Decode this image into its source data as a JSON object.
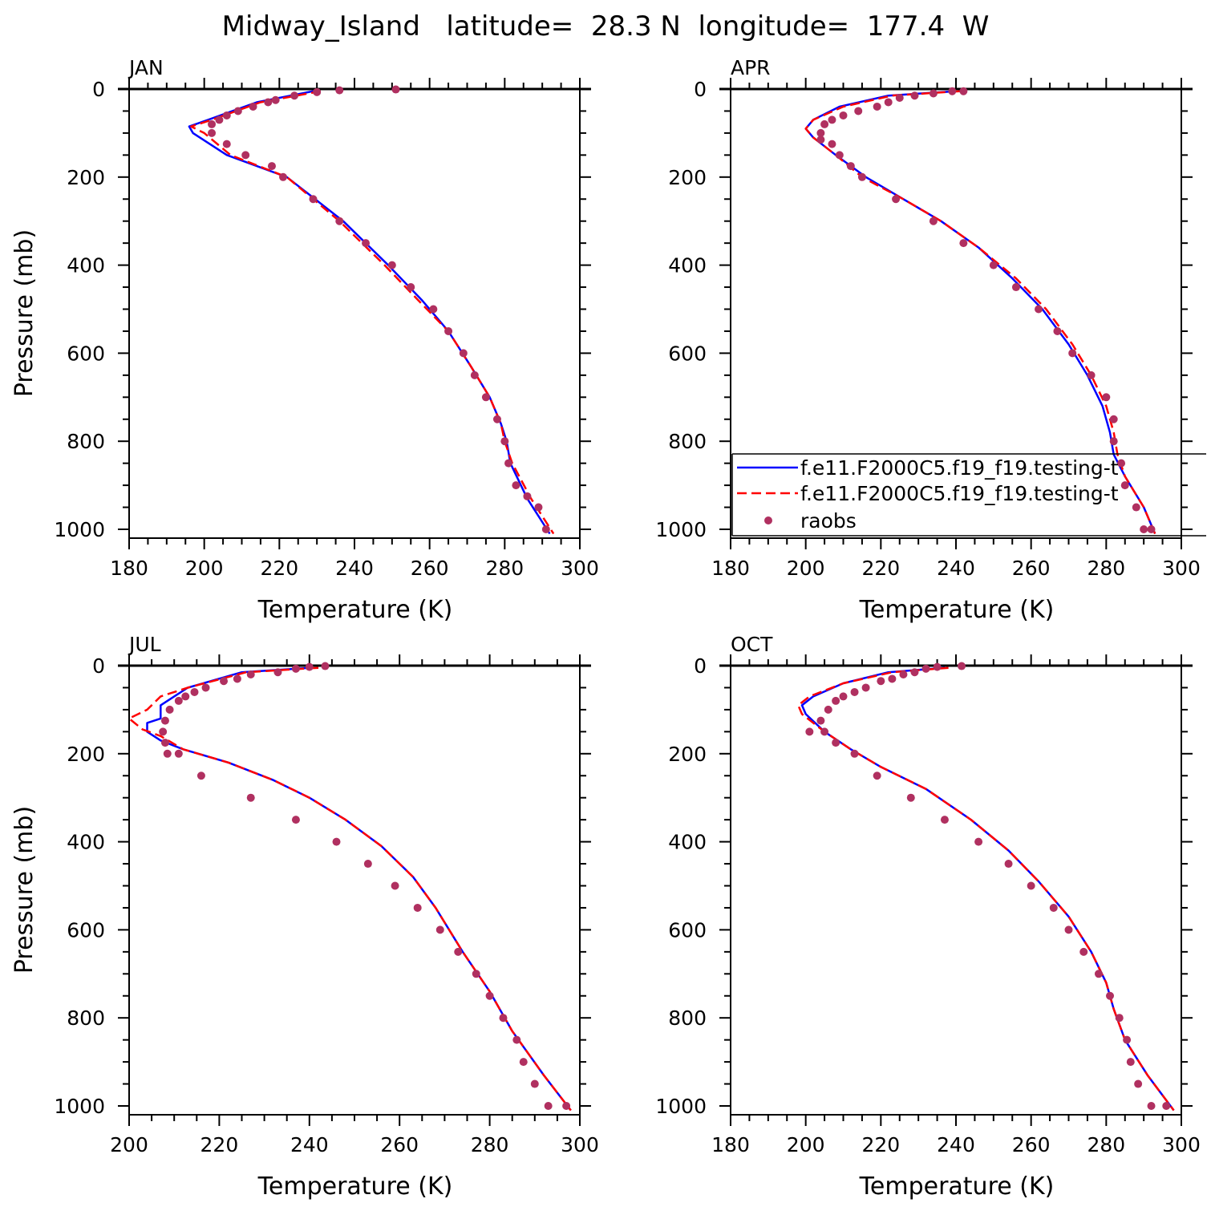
{
  "title": "Midway_Island   latitude=  28.3 N  longitude=  177.4  W",
  "colors": {
    "model1": "#0000ff",
    "model2": "#ff0000",
    "obs": "#b03060",
    "axes": "#000000"
  },
  "legend": {
    "panel_index": 1,
    "entries": [
      {
        "label": "f.e11.F2000C5.f19_f19.testing-t",
        "style": "solid",
        "color": "#0000ff"
      },
      {
        "label": "f.e11.F2000C5.f19_f19.testing-t",
        "style": "dashed",
        "color": "#ff0000"
      },
      {
        "label": "raobs",
        "style": "marker",
        "color": "#b03060"
      }
    ]
  },
  "chart_data": [
    {
      "type": "line",
      "panel_label": "JAN",
      "xlabel": "Temperature (K)",
      "ylabel": "Pressure (mb)",
      "xlim": [
        180,
        300
      ],
      "ylim": [
        1000,
        0
      ],
      "xticks": [
        180,
        200,
        220,
        240,
        260,
        280,
        300
      ],
      "yticks": [
        0,
        200,
        400,
        600,
        800,
        1000
      ],
      "series": [
        {
          "role": "model1",
          "x": [
            229,
            214,
            201,
            196,
            197,
            206,
            222,
            237,
            249,
            258,
            265,
            271,
            276,
            279,
            280.5,
            281.5,
            286,
            292
          ],
          "y": [
            5,
            30,
            70,
            85,
            100,
            150,
            200,
            300,
            400,
            480,
            550,
            630,
            700,
            760,
            800,
            850,
            930,
            1010
          ]
        },
        {
          "role": "model2",
          "x": [
            231,
            215,
            202,
            196.5,
            200,
            207,
            222,
            236,
            248,
            257,
            265,
            271,
            276,
            279,
            280,
            282,
            287,
            293
          ],
          "y": [
            5,
            30,
            70,
            85,
            100,
            150,
            200,
            300,
            400,
            480,
            550,
            630,
            700,
            760,
            800,
            850,
            930,
            1010
          ]
        },
        {
          "role": "obs",
          "x": [
            251,
            236,
            230,
            224,
            219,
            217,
            213,
            209,
            206,
            204,
            202,
            202,
            206,
            211,
            218,
            221,
            229,
            236,
            243,
            250,
            255,
            261,
            265,
            269,
            272,
            275,
            278,
            280,
            281,
            283,
            286,
            289,
            291
          ],
          "y": [
            1,
            3,
            7,
            15,
            25,
            30,
            40,
            50,
            60,
            70,
            80,
            100,
            125,
            150,
            175,
            200,
            250,
            300,
            350,
            400,
            450,
            500,
            550,
            600,
            650,
            700,
            750,
            800,
            850,
            900,
            925,
            950,
            1000
          ]
        }
      ]
    },
    {
      "type": "line",
      "panel_label": "APR",
      "xlabel": "Temperature (K)",
      "ylabel": "",
      "xlim": [
        180,
        300
      ],
      "ylim": [
        1000,
        0
      ],
      "xticks": [
        180,
        200,
        220,
        240,
        260,
        280,
        300
      ],
      "yticks": [
        0,
        200,
        400,
        600,
        800,
        1000
      ],
      "series": [
        {
          "role": "model1",
          "x": [
            240,
            222,
            209,
            202,
            200,
            202,
            208,
            216,
            226,
            236,
            246,
            255,
            263,
            270,
            275,
            279,
            281,
            282,
            285,
            290,
            293
          ],
          "y": [
            5,
            15,
            40,
            70,
            90,
            110,
            150,
            200,
            250,
            300,
            360,
            430,
            500,
            580,
            650,
            720,
            780,
            830,
            880,
            950,
            1010
          ]
        },
        {
          "role": "model2",
          "x": [
            241,
            223,
            210,
            202,
            200,
            202,
            208,
            215,
            226,
            236,
            246,
            256,
            264,
            271,
            276,
            280,
            282,
            283,
            285,
            290,
            293
          ],
          "y": [
            5,
            15,
            40,
            70,
            90,
            110,
            150,
            200,
            250,
            300,
            360,
            430,
            500,
            580,
            650,
            720,
            780,
            830,
            880,
            950,
            1010
          ]
        },
        {
          "role": "obs",
          "x": [
            242,
            239,
            234,
            229,
            225,
            222,
            219,
            214,
            210,
            207,
            205,
            204,
            204,
            207,
            209,
            212,
            215,
            224,
            234,
            242,
            250,
            256,
            262,
            267,
            271,
            276,
            280,
            282,
            282,
            284,
            285,
            288,
            290,
            292
          ],
          "y": [
            5,
            5,
            10,
            15,
            20,
            30,
            40,
            50,
            60,
            70,
            80,
            100,
            115,
            125,
            150,
            175,
            200,
            250,
            300,
            350,
            400,
            450,
            500,
            550,
            600,
            650,
            700,
            750,
            800,
            850,
            900,
            950,
            1000,
            1000
          ]
        }
      ]
    },
    {
      "type": "line",
      "panel_label": "JUL",
      "xlabel": "Temperature (K)",
      "ylabel": "Pressure (mb)",
      "xlim": [
        200,
        300
      ],
      "ylim": [
        1000,
        0
      ],
      "xticks": [
        200,
        220,
        240,
        260,
        280,
        300
      ],
      "yticks": [
        0,
        200,
        400,
        600,
        800,
        1000
      ],
      "series": [
        {
          "role": "model1",
          "x": [
            240,
            225,
            213,
            210,
            207,
            207,
            204,
            204,
            207,
            212,
            222,
            232,
            240,
            248,
            256,
            263,
            268,
            274,
            280,
            285,
            292,
            298
          ],
          "y": [
            5,
            15,
            50,
            70,
            90,
            120,
            130,
            150,
            170,
            190,
            220,
            260,
            300,
            350,
            410,
            480,
            550,
            650,
            740,
            830,
            930,
            1010
          ]
        },
        {
          "role": "model2",
          "x": [
            242,
            226,
            213,
            207,
            204,
            200,
            203,
            207,
            212,
            222,
            232,
            240,
            248,
            256,
            263,
            268,
            274,
            280,
            285,
            292,
            298
          ],
          "y": [
            5,
            15,
            50,
            70,
            100,
            120,
            145,
            160,
            190,
            220,
            260,
            300,
            350,
            410,
            480,
            550,
            650,
            740,
            830,
            930,
            1010
          ]
        },
        {
          "role": "obs",
          "x": [
            243.5,
            240,
            237,
            233,
            227,
            224,
            221,
            217,
            214.5,
            212.5,
            211,
            209,
            208,
            207.5,
            208,
            208.5,
            211,
            216,
            227,
            237,
            246,
            253,
            259,
            264,
            269,
            273,
            277,
            280,
            283,
            286,
            287.5,
            290,
            293,
            297
          ],
          "y": [
            1,
            3,
            7,
            15,
            20,
            30,
            35,
            50,
            60,
            70,
            80,
            100,
            125,
            150,
            175,
            200,
            200,
            250,
            300,
            350,
            400,
            450,
            500,
            550,
            600,
            650,
            700,
            750,
            800,
            850,
            900,
            950,
            1000,
            1000
          ]
        }
      ]
    },
    {
      "type": "line",
      "panel_label": "OCT",
      "xlabel": "Temperature (K)",
      "ylabel": "",
      "xlim": [
        180,
        300
      ],
      "ylim": [
        1000,
        0
      ],
      "xticks": [
        180,
        200,
        220,
        240,
        260,
        280,
        300
      ],
      "yticks": [
        0,
        200,
        400,
        600,
        800,
        1000
      ],
      "series": [
        {
          "role": "model1",
          "x": [
            237,
            222,
            210,
            202,
            199,
            200,
            205,
            212,
            220,
            232,
            244,
            254,
            262,
            270,
            276,
            280,
            282,
            285,
            291,
            298
          ],
          "y": [
            5,
            15,
            40,
            70,
            90,
            110,
            150,
            190,
            230,
            280,
            350,
            420,
            490,
            570,
            650,
            720,
            780,
            850,
            930,
            1010
          ]
        },
        {
          "role": "model2",
          "x": [
            238,
            223,
            210,
            201,
            198,
            199,
            205,
            212,
            220,
            232,
            244,
            254,
            262,
            270,
            276,
            280,
            282,
            285,
            291,
            298
          ],
          "y": [
            5,
            15,
            40,
            70,
            90,
            110,
            150,
            190,
            230,
            280,
            350,
            420,
            490,
            570,
            650,
            720,
            780,
            850,
            930,
            1010
          ]
        },
        {
          "role": "obs",
          "x": [
            241.5,
            235,
            232,
            229,
            226,
            223,
            220,
            216,
            213,
            210,
            208,
            206,
            204,
            201,
            205,
            208,
            213,
            219,
            228,
            237,
            246,
            254,
            260,
            266,
            270,
            274,
            278,
            281,
            283.5,
            285.5,
            286.5,
            288.5,
            292,
            296
          ],
          "y": [
            1,
            3,
            7,
            15,
            20,
            30,
            35,
            50,
            60,
            70,
            80,
            100,
            125,
            150,
            150,
            175,
            200,
            250,
            300,
            350,
            400,
            450,
            500,
            550,
            600,
            650,
            700,
            750,
            800,
            850,
            900,
            950,
            1000,
            1000
          ]
        }
      ]
    }
  ]
}
